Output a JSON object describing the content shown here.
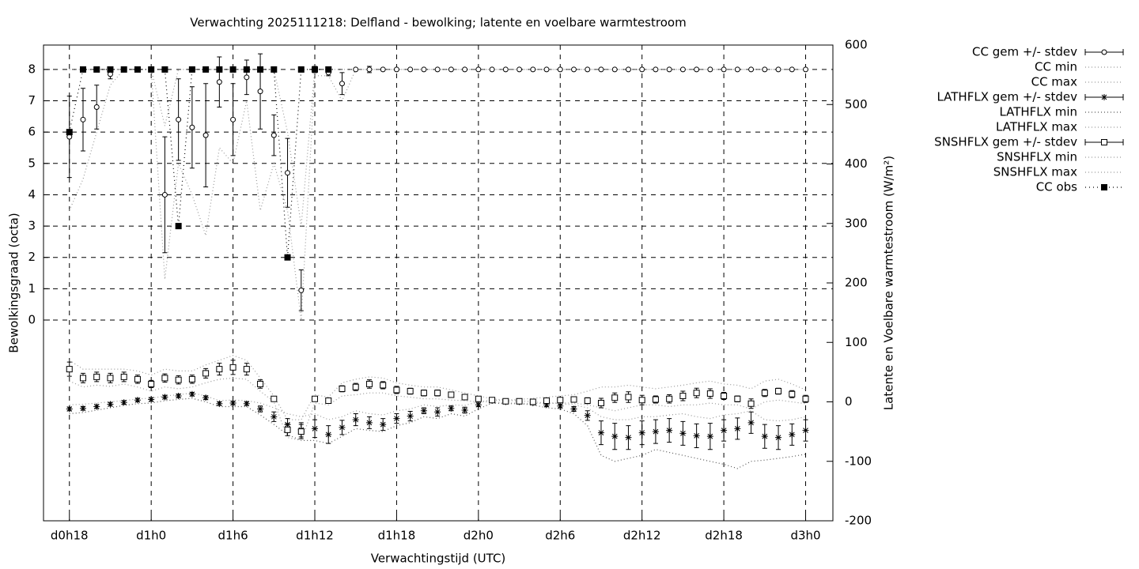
{
  "chart_data": {
    "type": "errorlines",
    "title": "Verwachting 2025111218: Delfland - bewolking; latente en voelbare warmtestroom",
    "xlabel": "Verwachtingstijd (UTC)",
    "ylabel": "Bewolkingsgraad (octa)",
    "y2label": "Latente en Voelbare warmtestroom (W/m²)",
    "x": [
      18,
      19,
      20,
      21,
      22,
      23,
      24,
      25,
      26,
      27,
      28,
      29,
      30,
      31,
      32,
      33,
      34,
      35,
      36,
      37,
      38,
      39,
      40,
      41,
      42,
      43,
      44,
      45,
      46,
      47,
      48,
      49,
      50,
      51,
      52,
      53,
      54,
      55,
      56,
      57,
      58,
      59,
      60,
      61,
      62,
      63,
      64,
      65,
      66,
      67,
      68,
      69,
      70,
      71,
      72
    ],
    "xlim": [
      16.1,
      74
    ],
    "xticks": [
      {
        "value": 18,
        "label": "d0h18"
      },
      {
        "value": 24,
        "label": "d1h0"
      },
      {
        "value": 30,
        "label": "d1h6"
      },
      {
        "value": 36,
        "label": "d1h12"
      },
      {
        "value": 42,
        "label": "d1h18"
      },
      {
        "value": 48,
        "label": "d2h0"
      },
      {
        "value": 54,
        "label": "d2h6"
      },
      {
        "value": 60,
        "label": "d2h12"
      },
      {
        "value": 66,
        "label": "d2h18"
      },
      {
        "value": 72,
        "label": "d3h0"
      }
    ],
    "ylim": [
      -6.41,
      8.78
    ],
    "yticks": [
      0,
      1,
      2,
      3,
      4,
      5,
      6,
      7,
      8
    ],
    "y2lim": [
      -200,
      600
    ],
    "y2ticks": [
      -200,
      -100,
      0,
      100,
      200,
      300,
      400,
      500,
      600
    ],
    "grid": true,
    "series": [
      {
        "name": "CC gem +/- stdev",
        "style": "errorbars",
        "point": "circle",
        "color": "#000000",
        "values": [
          5.85,
          6.4,
          6.8,
          7.85,
          8,
          8,
          8,
          4.0,
          6.4,
          6.15,
          5.9,
          7.6,
          6.4,
          7.75,
          7.3,
          5.9,
          4.7,
          0.95,
          8,
          7.9,
          7.55,
          8,
          8,
          8,
          8,
          8,
          8,
          8,
          8,
          8,
          8,
          8,
          8,
          8,
          8,
          8,
          8,
          8,
          8,
          8,
          8,
          8,
          8,
          8,
          8,
          8,
          8,
          8,
          8,
          8,
          8,
          8,
          8,
          8,
          8
        ],
        "errors": [
          1.3,
          1.0,
          0.7,
          0.15,
          0,
          0,
          0,
          1.85,
          1.3,
          1.3,
          1.65,
          0.8,
          1.15,
          0.55,
          1.2,
          0.65,
          1.1,
          0.65,
          0.1,
          0.1,
          0.35,
          0,
          0.1,
          0,
          0,
          0,
          0,
          0,
          0,
          0,
          0,
          0,
          0,
          0,
          0,
          0,
          0,
          0,
          0,
          0,
          0,
          0,
          0,
          0,
          0,
          0,
          0,
          0,
          0,
          0,
          0,
          0,
          0,
          0,
          0
        ]
      },
      {
        "name": "CC min",
        "style": "lines",
        "color": "#999999",
        "values": [
          3.5,
          4.5,
          6,
          7.5,
          8,
          8,
          8,
          1.3,
          5,
          4,
          2.7,
          5.5,
          5,
          7,
          3.5,
          5,
          3.5,
          0,
          7.8,
          7.8,
          7,
          8,
          8,
          8,
          8,
          8,
          8,
          8,
          8,
          8,
          8,
          8,
          8,
          8,
          8,
          8,
          8,
          8,
          8,
          8,
          8,
          8,
          8,
          8,
          8,
          8,
          8,
          8,
          8,
          8,
          8,
          8,
          8,
          8,
          8
        ]
      },
      {
        "name": "CC max",
        "style": "lines",
        "color": "#999999",
        "values": [
          8,
          8,
          8,
          8,
          8,
          8,
          8,
          6.2,
          8,
          8,
          8,
          8,
          8,
          8,
          8,
          8,
          6,
          3,
          8,
          8,
          8,
          8,
          8,
          8,
          8,
          8,
          8,
          8,
          8,
          8,
          8,
          8,
          8,
          8,
          8,
          8,
          8,
          8,
          8,
          8,
          8,
          8,
          8,
          8,
          8,
          8,
          8,
          8,
          8,
          8,
          8,
          8,
          8,
          8,
          8
        ]
      },
      {
        "name": "LATHFLX gem +/- stdev",
        "style": "errorbars",
        "point": "star",
        "axis": "y2",
        "color": "#000000",
        "values": [
          -12,
          -11,
          -8,
          -4,
          -1,
          3,
          4,
          8,
          10,
          13,
          7,
          -3,
          -2,
          -3,
          -12,
          -25,
          -38,
          -47,
          -45,
          -55,
          -43,
          -30,
          -35,
          -38,
          -28,
          -24,
          -15,
          -17,
          -11,
          -14,
          -5,
          2,
          0,
          0,
          -2,
          -5,
          -7,
          -12,
          -23,
          -52,
          -58,
          -60,
          -52,
          -50,
          -48,
          -53,
          -57,
          -58,
          -48,
          -45,
          -35,
          -58,
          -60,
          -55,
          -48
        ],
        "errors": [
          3,
          3,
          3,
          3,
          3,
          3,
          3,
          3,
          3,
          3,
          3,
          3,
          3,
          3,
          5,
          8,
          10,
          12,
          15,
          15,
          12,
          10,
          10,
          10,
          8,
          8,
          5,
          7,
          4,
          5,
          3,
          2,
          2,
          2,
          2,
          3,
          3,
          4,
          8,
          20,
          22,
          20,
          20,
          20,
          20,
          20,
          20,
          22,
          18,
          18,
          18,
          20,
          20,
          18,
          18
        ]
      },
      {
        "name": "LATHFLX min",
        "style": "lines",
        "axis": "y2",
        "color": "#555555",
        "values": [
          -20,
          -18,
          -14,
          -10,
          -6,
          -3,
          -2,
          2,
          4,
          6,
          0,
          -8,
          -8,
          -8,
          -22,
          -38,
          -55,
          -65,
          -65,
          -70,
          -58,
          -45,
          -48,
          -50,
          -40,
          -35,
          -25,
          -28,
          -20,
          -24,
          -12,
          -2,
          -3,
          -3,
          -5,
          -10,
          -12,
          -20,
          -40,
          -90,
          -100,
          -95,
          -90,
          -80,
          -85,
          -90,
          -95,
          -100,
          -105,
          -112,
          -100,
          -98,
          -95,
          -92,
          -88
        ]
      },
      {
        "name": "LATHFLX max",
        "style": "lines",
        "axis": "y2",
        "color": "#999999",
        "values": [
          -5,
          -4,
          -2,
          0,
          2,
          5,
          6,
          10,
          12,
          15,
          10,
          2,
          3,
          2,
          -2,
          -10,
          -20,
          -25,
          -20,
          -30,
          -25,
          -15,
          -20,
          -22,
          -15,
          -12,
          -5,
          -8,
          -5,
          -6,
          0,
          3,
          2,
          2,
          0,
          -2,
          -3,
          -5,
          -10,
          -25,
          -30,
          -30,
          -25,
          -25,
          -22,
          -20,
          -25,
          -28,
          -22,
          -20,
          -15,
          -30,
          -32,
          -30,
          -25
        ]
      },
      {
        "name": "SNSHFLX gem +/- stdev",
        "style": "errorbars",
        "point": "square",
        "axis": "y2",
        "color": "#000000",
        "values": [
          55,
          40,
          42,
          40,
          42,
          38,
          30,
          40,
          37,
          38,
          48,
          55,
          58,
          55,
          30,
          5,
          -47,
          -50,
          5,
          2,
          22,
          25,
          30,
          28,
          20,
          18,
          15,
          15,
          12,
          8,
          5,
          3,
          1,
          1,
          0,
          2,
          3,
          4,
          2,
          -2,
          7,
          8,
          3,
          4,
          5,
          10,
          15,
          14,
          10,
          5,
          -3,
          15,
          18,
          13,
          5
        ],
        "errors": [
          12,
          8,
          8,
          8,
          8,
          7,
          6,
          7,
          7,
          7,
          8,
          10,
          12,
          10,
          7,
          3,
          10,
          12,
          4,
          2,
          5,
          6,
          7,
          6,
          6,
          5,
          5,
          5,
          4,
          3,
          2,
          2,
          2,
          2,
          3,
          3,
          3,
          3,
          5,
          8,
          8,
          9,
          8,
          6,
          7,
          8,
          8,
          8,
          6,
          5,
          8,
          6,
          5,
          6,
          6
        ]
      },
      {
        "name": "SNSHFLX min",
        "style": "lines",
        "axis": "y2",
        "color": "#999999",
        "values": [
          35,
          25,
          28,
          26,
          30,
          25,
          18,
          25,
          22,
          25,
          32,
          38,
          40,
          38,
          18,
          0,
          -60,
          -65,
          -2,
          -5,
          10,
          12,
          15,
          15,
          10,
          8,
          5,
          5,
          3,
          2,
          0,
          0,
          -2,
          -2,
          -3,
          -2,
          -2,
          -2,
          -5,
          -10,
          -15,
          -10,
          -5,
          -5,
          -8,
          -5,
          -5,
          -2,
          -5,
          -5,
          -12,
          0,
          3,
          0,
          -3
        ]
      },
      {
        "name": "SNSHFLX max",
        "style": "lines",
        "axis": "y2",
        "color": "#999999",
        "values": [
          70,
          55,
          55,
          55,
          55,
          52,
          45,
          55,
          52,
          52,
          62,
          70,
          78,
          70,
          40,
          10,
          -30,
          -30,
          12,
          8,
          32,
          38,
          42,
          40,
          32,
          28,
          25,
          25,
          20,
          15,
          10,
          5,
          3,
          4,
          6,
          8,
          10,
          12,
          18,
          25,
          25,
          28,
          25,
          22,
          25,
          28,
          32,
          35,
          30,
          28,
          22,
          35,
          38,
          30,
          20
        ]
      },
      {
        "name": "CC obs",
        "style": "linespoints",
        "point": "filled-square",
        "color": "#000000",
        "values": [
          6,
          8,
          8,
          8,
          8,
          8,
          8,
          8,
          3,
          8,
          8,
          8,
          8,
          8,
          8,
          8,
          2,
          8,
          8,
          8,
          null,
          null,
          null,
          null,
          null,
          null,
          null,
          null,
          null,
          null,
          null,
          null,
          null,
          null,
          null,
          null,
          null,
          null,
          null,
          null,
          null,
          null,
          null,
          null,
          null,
          null,
          null,
          null,
          null,
          null,
          null,
          null,
          null,
          null,
          null
        ]
      }
    ]
  }
}
